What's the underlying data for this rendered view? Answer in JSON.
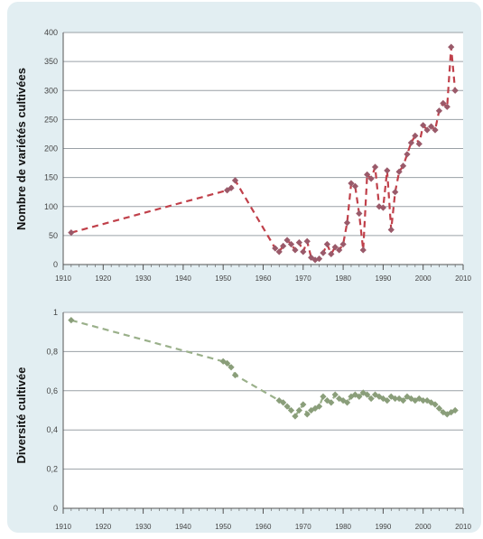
{
  "chart_data": [
    {
      "type": "scatter",
      "ylabel": "Nombre de variétés cultivées",
      "xlim": [
        1910,
        2010
      ],
      "ylim": [
        0,
        400
      ],
      "x_ticks": [
        "1910",
        "1920",
        "1930",
        "1940",
        "1950",
        "1960",
        "1970",
        "1980",
        "1990",
        "2000",
        "2010"
      ],
      "y_ticks": [
        "0",
        "50",
        "100",
        "150",
        "200",
        "250",
        "300",
        "350",
        "400"
      ],
      "grid": "horizontal",
      "series": [
        {
          "color": "#c0404a",
          "marker_color": "#9a5a6a",
          "points": [
            {
              "x": 1912,
              "y": 55
            },
            {
              "x": 1951,
              "y": 128
            },
            {
              "x": 1952,
              "y": 132
            },
            {
              "x": 1953,
              "y": 145
            },
            {
              "x": 1963,
              "y": 28
            },
            {
              "x": 1964,
              "y": 22
            },
            {
              "x": 1965,
              "y": 32
            },
            {
              "x": 1966,
              "y": 42
            },
            {
              "x": 1967,
              "y": 35
            },
            {
              "x": 1968,
              "y": 25
            },
            {
              "x": 1969,
              "y": 38
            },
            {
              "x": 1970,
              "y": 22
            },
            {
              "x": 1971,
              "y": 40
            },
            {
              "x": 1972,
              "y": 12
            },
            {
              "x": 1973,
              "y": 8
            },
            {
              "x": 1974,
              "y": 10
            },
            {
              "x": 1975,
              "y": 20
            },
            {
              "x": 1976,
              "y": 35
            },
            {
              "x": 1977,
              "y": 18
            },
            {
              "x": 1978,
              "y": 30
            },
            {
              "x": 1979,
              "y": 25
            },
            {
              "x": 1980,
              "y": 35
            },
            {
              "x": 1981,
              "y": 72
            },
            {
              "x": 1982,
              "y": 140
            },
            {
              "x": 1983,
              "y": 135
            },
            {
              "x": 1984,
              "y": 88
            },
            {
              "x": 1985,
              "y": 25
            },
            {
              "x": 1986,
              "y": 155
            },
            {
              "x": 1987,
              "y": 148
            },
            {
              "x": 1988,
              "y": 168
            },
            {
              "x": 1989,
              "y": 100
            },
            {
              "x": 1990,
              "y": 98
            },
            {
              "x": 1991,
              "y": 162
            },
            {
              "x": 1992,
              "y": 60
            },
            {
              "x": 1993,
              "y": 125
            },
            {
              "x": 1994,
              "y": 160
            },
            {
              "x": 1995,
              "y": 170
            },
            {
              "x": 1996,
              "y": 190
            },
            {
              "x": 1997,
              "y": 210
            },
            {
              "x": 1998,
              "y": 222
            },
            {
              "x": 1999,
              "y": 208
            },
            {
              "x": 2000,
              "y": 240
            },
            {
              "x": 2001,
              "y": 232
            },
            {
              "x": 2002,
              "y": 238
            },
            {
              "x": 2003,
              "y": 232
            },
            {
              "x": 2004,
              "y": 265
            },
            {
              "x": 2005,
              "y": 278
            },
            {
              "x": 2006,
              "y": 272
            },
            {
              "x": 2007,
              "y": 375
            },
            {
              "x": 2008,
              "y": 300
            }
          ]
        }
      ]
    },
    {
      "type": "scatter",
      "ylabel": "Diversité cultivée",
      "xlim": [
        1910,
        2010
      ],
      "ylim": [
        0,
        1
      ],
      "x_ticks": [
        "1910",
        "1920",
        "1930",
        "1940",
        "1950",
        "1960",
        "1970",
        "1980",
        "1990",
        "2000",
        "2010"
      ],
      "y_ticks": [
        "0",
        "0,2",
        "0,4",
        "0,6",
        "0,8",
        "1"
      ],
      "grid": "horizontal",
      "series": [
        {
          "color": "#9ab08a",
          "marker_color": "#8a9e7a",
          "points": [
            {
              "x": 1912,
              "y": 0.96
            },
            {
              "x": 1950,
              "y": 0.75
            },
            {
              "x": 1951,
              "y": 0.74
            },
            {
              "x": 1952,
              "y": 0.72
            },
            {
              "x": 1953,
              "y": 0.68
            },
            {
              "x": 1964,
              "y": 0.55
            },
            {
              "x": 1965,
              "y": 0.54
            },
            {
              "x": 1966,
              "y": 0.52
            },
            {
              "x": 1967,
              "y": 0.5
            },
            {
              "x": 1968,
              "y": 0.47
            },
            {
              "x": 1969,
              "y": 0.5
            },
            {
              "x": 1970,
              "y": 0.53
            },
            {
              "x": 1971,
              "y": 0.48
            },
            {
              "x": 1972,
              "y": 0.5
            },
            {
              "x": 1973,
              "y": 0.51
            },
            {
              "x": 1974,
              "y": 0.52
            },
            {
              "x": 1975,
              "y": 0.57
            },
            {
              "x": 1976,
              "y": 0.55
            },
            {
              "x": 1977,
              "y": 0.54
            },
            {
              "x": 1978,
              "y": 0.58
            },
            {
              "x": 1979,
              "y": 0.56
            },
            {
              "x": 1980,
              "y": 0.55
            },
            {
              "x": 1981,
              "y": 0.54
            },
            {
              "x": 1982,
              "y": 0.57
            },
            {
              "x": 1983,
              "y": 0.58
            },
            {
              "x": 1984,
              "y": 0.57
            },
            {
              "x": 1985,
              "y": 0.59
            },
            {
              "x": 1986,
              "y": 0.58
            },
            {
              "x": 1987,
              "y": 0.56
            },
            {
              "x": 1988,
              "y": 0.58
            },
            {
              "x": 1989,
              "y": 0.57
            },
            {
              "x": 1990,
              "y": 0.56
            },
            {
              "x": 1991,
              "y": 0.55
            },
            {
              "x": 1992,
              "y": 0.57
            },
            {
              "x": 1993,
              "y": 0.56
            },
            {
              "x": 1994,
              "y": 0.56
            },
            {
              "x": 1995,
              "y": 0.55
            },
            {
              "x": 1996,
              "y": 0.57
            },
            {
              "x": 1997,
              "y": 0.56
            },
            {
              "x": 1998,
              "y": 0.55
            },
            {
              "x": 1999,
              "y": 0.56
            },
            {
              "x": 2000,
              "y": 0.55
            },
            {
              "x": 2001,
              "y": 0.55
            },
            {
              "x": 2002,
              "y": 0.54
            },
            {
              "x": 2003,
              "y": 0.53
            },
            {
              "x": 2004,
              "y": 0.51
            },
            {
              "x": 2005,
              "y": 0.49
            },
            {
              "x": 2006,
              "y": 0.48
            },
            {
              "x": 2007,
              "y": 0.49
            },
            {
              "x": 2008,
              "y": 0.5
            }
          ]
        }
      ]
    }
  ],
  "colors": {
    "panel_background": "#e2eef2",
    "plot_background": "#ffffff",
    "gridline": "#9aa0a6",
    "axis": "#555555",
    "tick_text": "#444444"
  }
}
